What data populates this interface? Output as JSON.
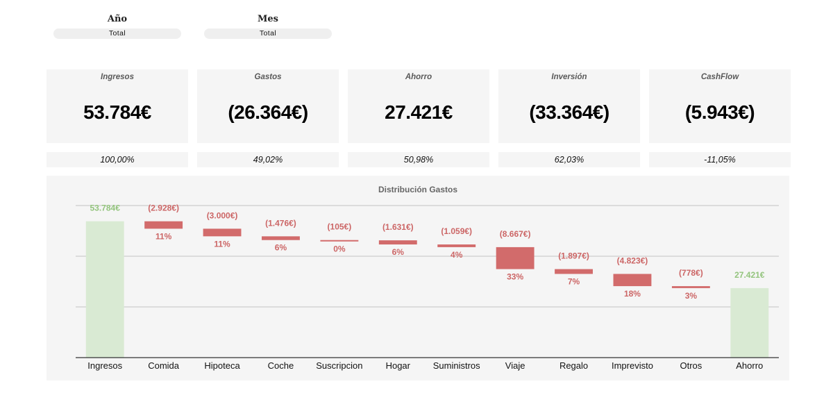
{
  "filters": {
    "year": {
      "title": "Año",
      "value": "Total"
    },
    "month": {
      "title": "Mes",
      "value": "Total"
    }
  },
  "kpis": [
    {
      "label": "Ingresos",
      "value": "53.784€",
      "pct": "100,00%"
    },
    {
      "label": "Gastos",
      "value": "(26.364€)",
      "pct": "49,02%"
    },
    {
      "label": "Ahorro",
      "value": "27.421€",
      "pct": "50,98%"
    },
    {
      "label": "Inversión",
      "value": "(33.364€)",
      "pct": "62,03%"
    },
    {
      "label": "CashFlow",
      "value": "(5.943€)",
      "pct": "-11,05%"
    }
  ],
  "colors": {
    "total_bar": "#d9ead3",
    "total_label": "#93c47d",
    "expense_bar": "#d26b6b",
    "expense_label": "#cc6666",
    "panel_bg": "#f5f5f5"
  },
  "chart_data": {
    "type": "bar",
    "subtype": "waterfall",
    "title": "Distribución Gastos",
    "xlabel": "",
    "ylabel": "",
    "ylim": [
      0,
      60000
    ],
    "grid": true,
    "categories": [
      "Ingresos",
      "Comida",
      "Hipoteca",
      "Coche",
      "Suscripcion",
      "Hogar",
      "Suministros",
      "Viaje",
      "Regalo",
      "Imprevisto",
      "Otros",
      "Ahorro"
    ],
    "values": [
      53784,
      -2928,
      -3000,
      -1476,
      -105,
      -1631,
      -1059,
      -8667,
      -1897,
      -4823,
      -778,
      27421
    ],
    "is_total": [
      true,
      false,
      false,
      false,
      false,
      false,
      false,
      false,
      false,
      false,
      false,
      true
    ],
    "value_labels": [
      "53.784€",
      "(2.928€)",
      "(3.000€)",
      "(1.476€)",
      "(105€)",
      "(1.631€)",
      "(1.059€)",
      "(8.667€)",
      "(1.897€)",
      "(4.823€)",
      "(778€)",
      "27.421€"
    ],
    "pct_labels": [
      "",
      "11%",
      "11%",
      "6%",
      "0%",
      "6%",
      "4%",
      "33%",
      "7%",
      "18%",
      "3%",
      ""
    ]
  }
}
